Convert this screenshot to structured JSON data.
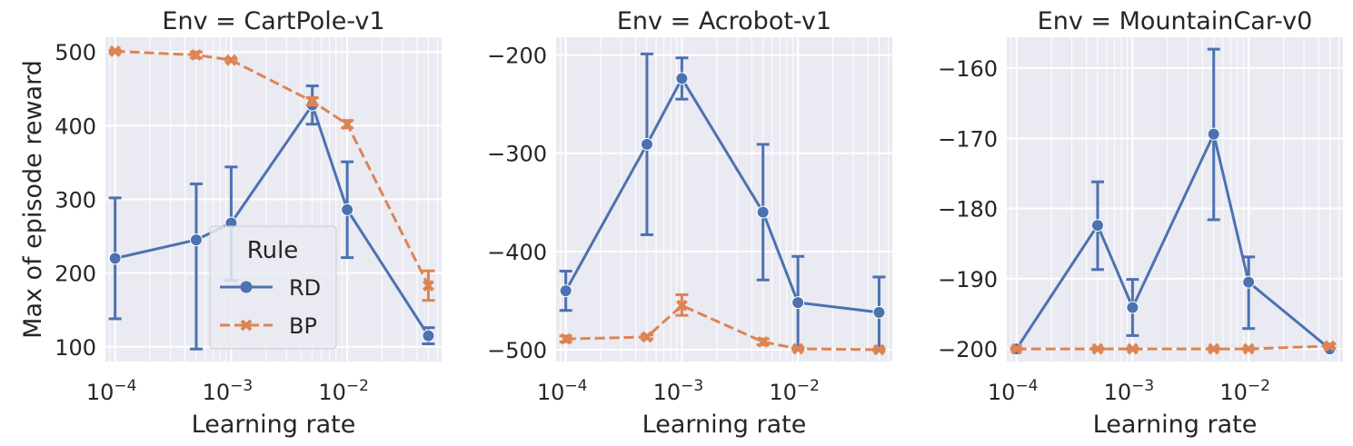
{
  "chart_data": [
    {
      "type": "line",
      "title": "Env = CartPole-v1",
      "xlabel": "Learning rate",
      "ylabel": "Max of episode reward",
      "xscale": "log",
      "x": [
        0.0001,
        0.0005,
        0.001,
        0.005,
        0.01,
        0.05
      ],
      "ylim": [
        80,
        520
      ],
      "yticks": [
        100,
        200,
        300,
        400,
        500
      ],
      "legend": "lower-center",
      "series": [
        {
          "name": "RD",
          "values": [
            220,
            245,
            268,
            428,
            286,
            115
          ],
          "err_low": [
            138,
            97,
            190,
            402,
            221,
            104
          ],
          "err_high": [
            302,
            321,
            344,
            454,
            351,
            126
          ]
        },
        {
          "name": "BP",
          "values": [
            501,
            496,
            489,
            433,
            402,
            183
          ],
          "err_low": [
            499,
            492,
            487,
            428,
            397,
            163
          ],
          "err_high": [
            502,
            500,
            491,
            438,
            407,
            203
          ]
        }
      ]
    },
    {
      "type": "line",
      "title": "Env = Acrobot-v1",
      "xlabel": "Learning rate",
      "ylabel": "",
      "xscale": "log",
      "x": [
        0.0001,
        0.0005,
        0.001,
        0.005,
        0.01,
        0.05
      ],
      "ylim": [
        -512,
        -182
      ],
      "yticks": [
        -500,
        -400,
        -300,
        -200
      ],
      "series": [
        {
          "name": "RD",
          "values": [
            -440,
            -291,
            -224,
            -360,
            -452,
            -462
          ],
          "err_low": [
            -460,
            -383,
            -245,
            -429,
            -499,
            -500
          ],
          "err_high": [
            -420,
            -199,
            -203,
            -291,
            -405,
            -426
          ]
        },
        {
          "name": "BP",
          "values": [
            -489,
            -487,
            -455,
            -492,
            -499,
            -500
          ],
          "err_low": [
            -492,
            -489,
            -465,
            -495,
            -500,
            -501
          ],
          "err_high": [
            -486,
            -485,
            -444,
            -489,
            -498,
            -499
          ]
        }
      ]
    },
    {
      "type": "line",
      "title": "Env = MountainCar-v0",
      "xlabel": "Learning rate",
      "ylabel": "",
      "xscale": "log",
      "x": [
        0.0001,
        0.0005,
        0.001,
        0.005,
        0.01,
        0.05
      ],
      "ylim": [
        -201.8,
        -155.6
      ],
      "yticks": [
        -200,
        -190,
        -180,
        -170,
        -160
      ],
      "series": [
        {
          "name": "RD",
          "values": [
            -200,
            -182.4,
            -194.1,
            -169.4,
            -190.5,
            -200
          ],
          "err_low": [
            -200,
            -188.7,
            -198.1,
            -181.6,
            -197.1,
            -200.1
          ],
          "err_high": [
            -200,
            -176.2,
            -190.1,
            -157.3,
            -186.9,
            -199.9
          ]
        },
        {
          "name": "BP",
          "values": [
            -200,
            -200,
            -200,
            -200,
            -200,
            -199.6
          ],
          "err_low": [
            -200.1,
            -200.1,
            -200.1,
            -200.1,
            -200.1,
            -199.9
          ],
          "err_high": [
            -199.9,
            -199.9,
            -199.9,
            -199.9,
            -199.9,
            -199.3
          ]
        }
      ]
    }
  ],
  "legend": {
    "title": "Rule",
    "items": [
      "RD",
      "BP"
    ]
  },
  "xtick_labels": [
    "10",
    "10",
    "10"
  ],
  "xtick_exponents": [
    "−4",
    "−3",
    "−2"
  ],
  "colors": {
    "RD": "#4c72b0",
    "BP": "#dd8452",
    "background": "#eaeaf2",
    "grid": "#ffffff"
  }
}
